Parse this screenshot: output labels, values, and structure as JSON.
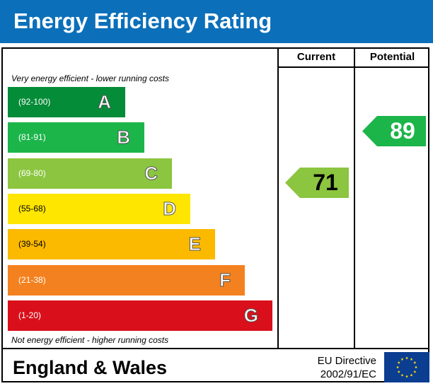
{
  "header": {
    "title": "Energy Efficiency Rating"
  },
  "columns": {
    "current": "Current",
    "potential": "Potential"
  },
  "captions": {
    "top": "Very energy efficient - lower running costs",
    "bottom": "Not energy efficient - higher running costs"
  },
  "colors": {
    "header_bg": "#0b6fba",
    "A": "#058c38",
    "B": "#1cb54a",
    "C": "#8cc540",
    "D": "#ffe600",
    "E": "#fbb900",
    "F": "#f4811f",
    "G": "#d9101b",
    "eu_flag": "#0b3d91",
    "eu_stars": "#ffdd00"
  },
  "chart_data": {
    "type": "bar",
    "title": "Energy Efficiency Rating",
    "categories": [
      "A",
      "B",
      "C",
      "D",
      "E",
      "F",
      "G"
    ],
    "bands": [
      {
        "letter": "A",
        "range": "(92-100)",
        "range_min": 92,
        "range_max": 100,
        "color": "#058c38"
      },
      {
        "letter": "B",
        "range": "(81-91)",
        "range_min": 81,
        "range_max": 91,
        "color": "#1cb54a"
      },
      {
        "letter": "C",
        "range": "(69-80)",
        "range_min": 69,
        "range_max": 80,
        "color": "#8cc540"
      },
      {
        "letter": "D",
        "range": "(55-68)",
        "range_min": 55,
        "range_max": 68,
        "color": "#ffe600"
      },
      {
        "letter": "E",
        "range": "(39-54)",
        "range_min": 39,
        "range_max": 54,
        "color": "#fbb900"
      },
      {
        "letter": "F",
        "range": "(21-38)",
        "range_min": 21,
        "range_max": 38,
        "color": "#f4811f"
      },
      {
        "letter": "G",
        "range": "(1-20)",
        "range_min": 1,
        "range_max": 20,
        "color": "#d9101b"
      }
    ],
    "ratings": {
      "current": {
        "value": 71,
        "band": "C",
        "color": "#8cc540"
      },
      "potential": {
        "value": 89,
        "band": "B",
        "color": "#1cb54a"
      }
    }
  },
  "footer": {
    "region": "England & Wales",
    "directive_line1": "EU Directive",
    "directive_line2": "2002/91/EC"
  }
}
